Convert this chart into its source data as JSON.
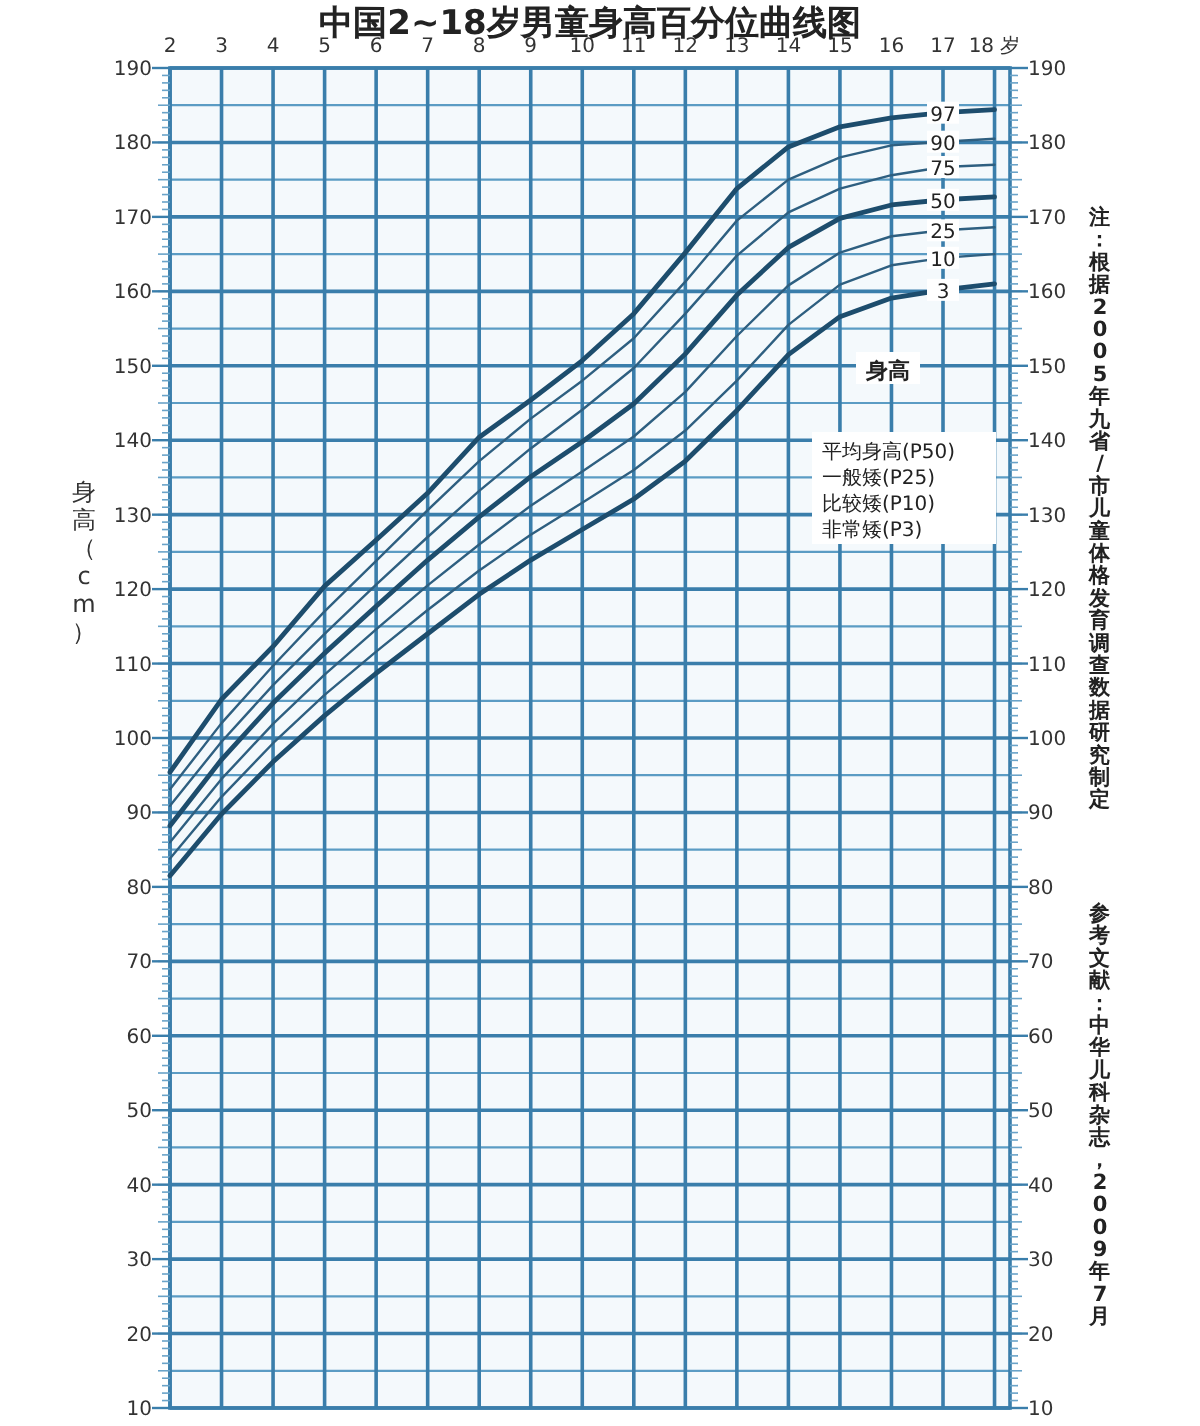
{
  "chart_data": {
    "type": "line",
    "title": "中国2~18岁男童身高百分位曲线图",
    "ylabel": "身高（cm）",
    "x": [
      2,
      3,
      4,
      5,
      6,
      7,
      8,
      9,
      10,
      11,
      12,
      13,
      14,
      15,
      16,
      17,
      18
    ],
    "series": [
      {
        "name": "97",
        "color": "#1d4d6d",
        "values": [
          95.4,
          105.2,
          112.3,
          120.4,
          126.6,
          132.9,
          140.4,
          145.4,
          150.7,
          157.0,
          165.2,
          173.8,
          179.4,
          182.1,
          183.3,
          184.0,
          184.4
        ]
      },
      {
        "name": "90",
        "color": "#2e5f80",
        "values": [
          93.1,
          102.0,
          109.7,
          117.0,
          123.8,
          130.6,
          137.2,
          142.9,
          148.0,
          153.7,
          161.3,
          169.5,
          175.0,
          178.0,
          179.6,
          180.1,
          180.5
        ]
      },
      {
        "name": "75",
        "color": "#2e5f80",
        "values": [
          90.9,
          99.5,
          107.1,
          114.0,
          120.6,
          127.0,
          133.2,
          138.9,
          144.1,
          149.7,
          157.0,
          164.8,
          170.6,
          173.8,
          175.6,
          176.7,
          177.0
        ]
      },
      {
        "name": "50",
        "color": "#1d4d6d",
        "values": [
          88.2,
          97.1,
          104.7,
          111.4,
          117.7,
          123.9,
          129.7,
          135.1,
          139.8,
          144.9,
          151.6,
          159.5,
          165.9,
          169.8,
          171.6,
          172.3,
          172.7
        ]
      },
      {
        "name": "25",
        "color": "#2e5f80",
        "values": [
          86.0,
          94.5,
          101.9,
          108.5,
          114.6,
          120.5,
          126.0,
          131.2,
          135.8,
          140.5,
          146.5,
          154.0,
          160.8,
          165.2,
          167.4,
          168.2,
          168.6
        ]
      },
      {
        "name": "10",
        "color": "#2e5f80",
        "values": [
          83.8,
          92.1,
          99.3,
          105.8,
          111.6,
          117.2,
          122.5,
          127.3,
          131.6,
          136.0,
          141.3,
          148.0,
          155.5,
          160.9,
          163.5,
          164.5,
          165.0
        ]
      },
      {
        "name": "3",
        "color": "#1d4d6d",
        "values": [
          81.5,
          89.8,
          96.8,
          103.0,
          108.7,
          114.0,
          119.3,
          123.9,
          128.0,
          132.1,
          137.2,
          144.0,
          151.5,
          156.6,
          159.1,
          160.2,
          161.0
        ]
      }
    ],
    "xlim": [
      2,
      18.3
    ],
    "xticks": [
      2,
      3,
      4,
      5,
      6,
      7,
      8,
      9,
      10,
      11,
      12,
      13,
      14,
      15,
      16,
      17,
      {
        "value": 18,
        "label": "18 岁"
      }
    ],
    "ylim": [
      10,
      190
    ],
    "yticks": [
      10,
      {
        "value": 15,
        "label": null
      },
      20,
      {
        "value": 25,
        "label": null
      },
      30,
      {
        "value": 35,
        "label": null
      },
      40,
      {
        "value": 45,
        "label": null
      },
      50,
      {
        "value": 55,
        "label": null
      },
      60,
      {
        "value": 65,
        "label": null
      },
      70,
      {
        "value": 75,
        "label": null
      },
      80,
      {
        "value": 85,
        "label": null
      },
      90,
      {
        "value": 95,
        "label": null
      },
      100,
      {
        "value": 105,
        "label": null
      },
      110,
      {
        "value": 115,
        "label": null
      },
      120,
      {
        "value": 125,
        "label": null
      },
      130,
      {
        "value": 135,
        "label": null
      },
      140,
      {
        "value": 145,
        "label": null
      },
      150,
      {
        "value": 155,
        "label": null
      },
      160,
      {
        "value": 165,
        "label": null
      },
      170,
      {
        "value": 175,
        "label": null
      },
      180,
      {
        "value": 185,
        "label": null
      },
      190
    ],
    "y2lim": [
      10,
      190
    ],
    "y2ticks": [
      10,
      20,
      30,
      40,
      50,
      60,
      70,
      80,
      90,
      100,
      110,
      120,
      130,
      140,
      150,
      160,
      170,
      180,
      190
    ],
    "grid": true,
    "annotations": [
      "身高",
      "平均身高(P50)",
      "一般矮(P25)",
      "比较矮(P10)",
      "非常矮(P3)",
      "注：根据2005年九省/市儿童体格发育调查数据研究制定",
      "参考文献：中华儿科杂志，2009年7月"
    ]
  }
}
